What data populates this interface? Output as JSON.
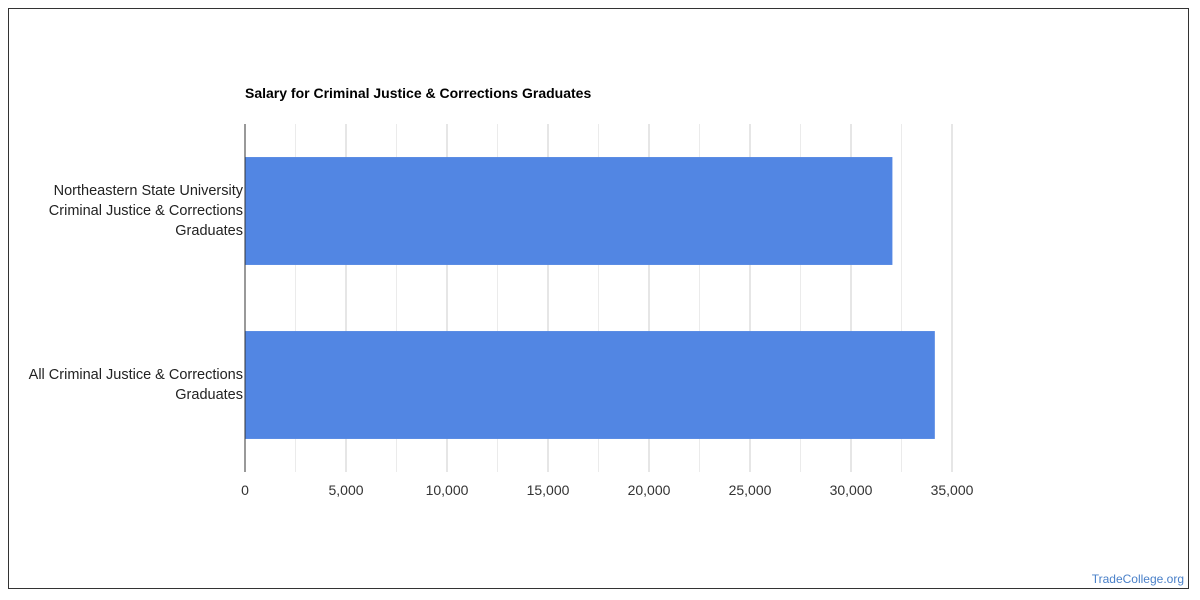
{
  "chart_data": {
    "type": "bar",
    "orientation": "horizontal",
    "title": "Salary for Criminal Justice & Corrections Graduates",
    "categories": [
      "Northeastern State University Criminal Justice & Corrections Graduates",
      "All Criminal Justice & Corrections Graduates"
    ],
    "category_lines": [
      [
        "Northeastern State University",
        "Criminal Justice & Corrections",
        "Graduates"
      ],
      [
        "All Criminal Justice & Corrections",
        "Graduates"
      ]
    ],
    "values": [
      32050,
      34150
    ],
    "xlim": [
      0,
      35000
    ],
    "ticks": [
      0,
      5000,
      10000,
      15000,
      20000,
      25000,
      30000,
      35000
    ],
    "tick_labels": [
      "0",
      "5,000",
      "10,000",
      "15,000",
      "20,000",
      "25,000",
      "30,000",
      "35,000"
    ],
    "bar_color": "#5286e3",
    "grid": true,
    "legend": "none"
  },
  "watermark": "TradeCollege.org"
}
